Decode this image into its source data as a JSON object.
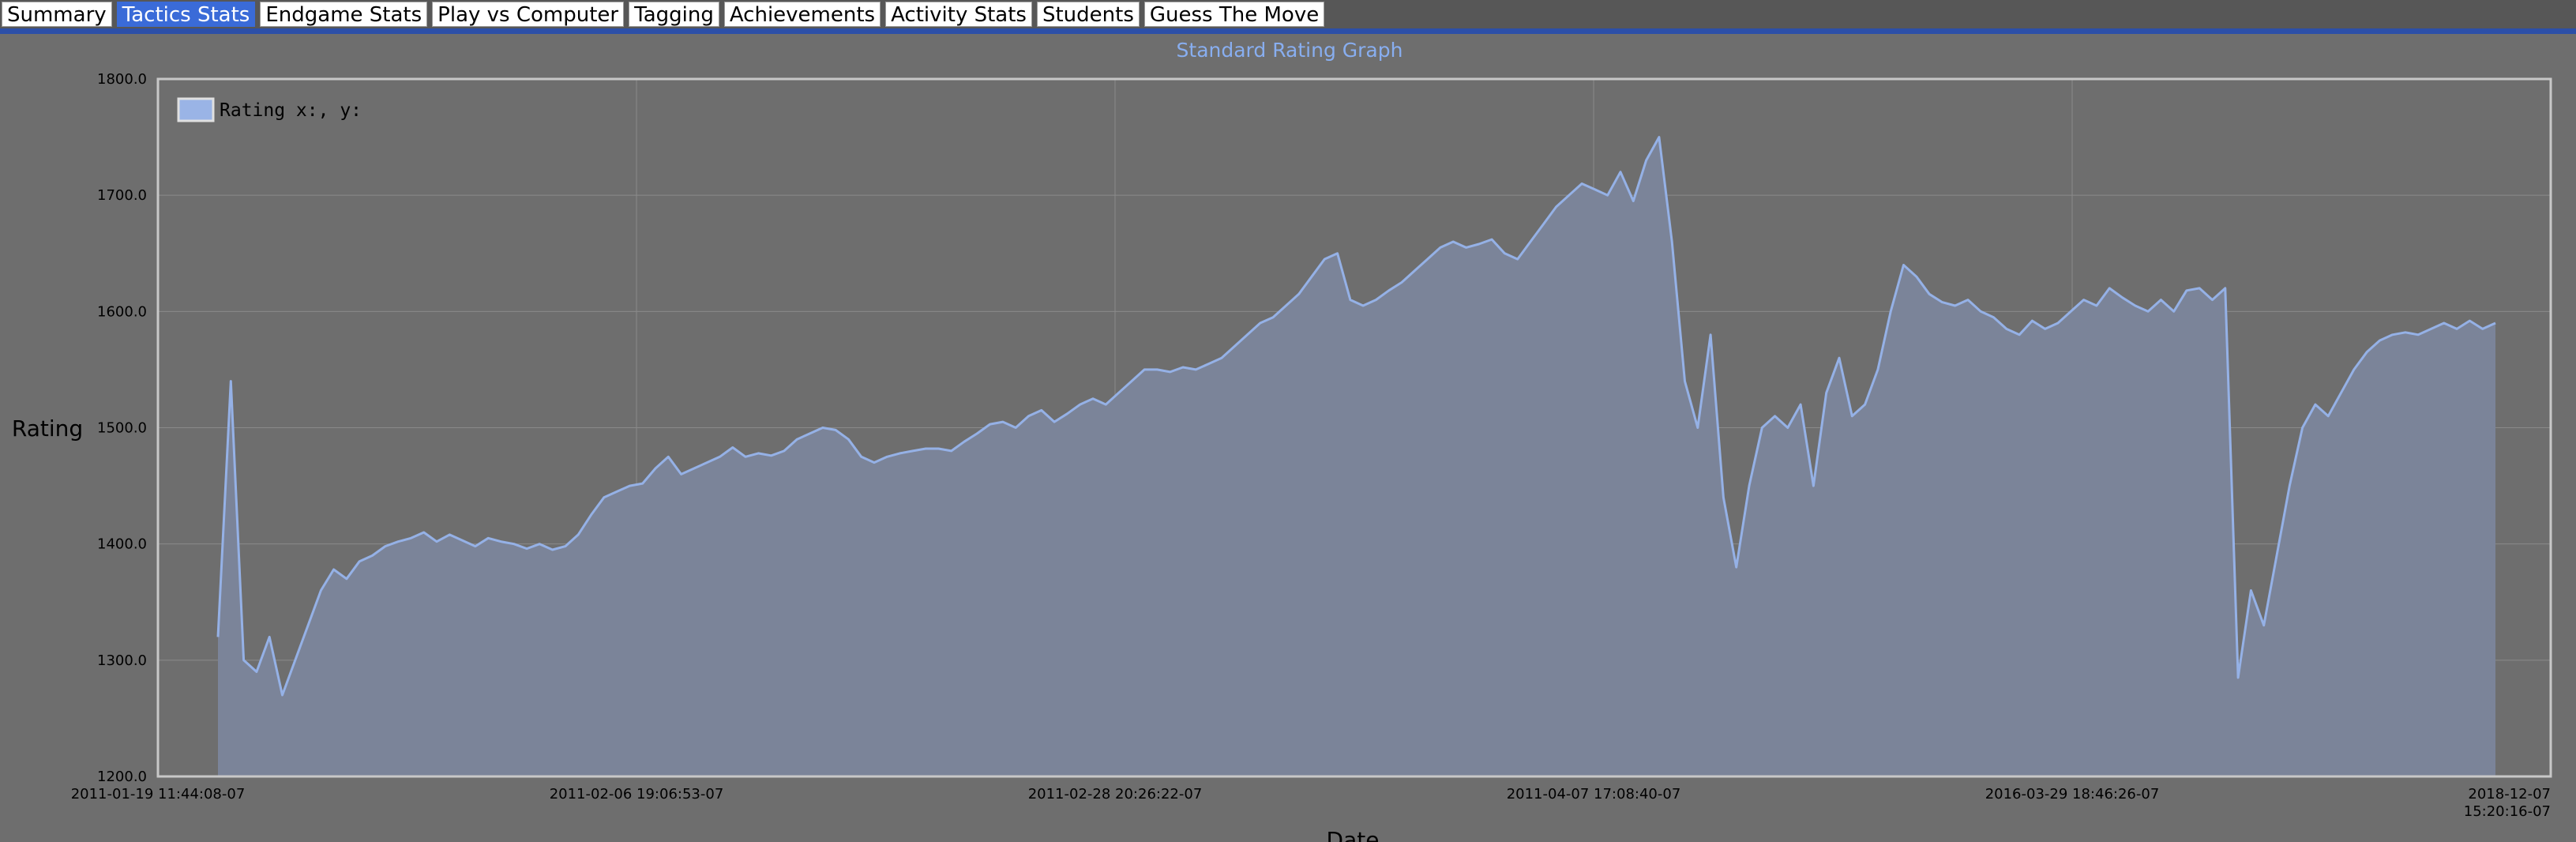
{
  "tabs": [
    {
      "label": "Summary",
      "active": false
    },
    {
      "label": "Tactics Stats",
      "active": true
    },
    {
      "label": "Endgame Stats",
      "active": false
    },
    {
      "label": "Play vs Computer",
      "active": false
    },
    {
      "label": "Tagging",
      "active": false
    },
    {
      "label": "Achievements",
      "active": false
    },
    {
      "label": "Activity Stats",
      "active": false
    },
    {
      "label": "Students",
      "active": false
    },
    {
      "label": "Guess The Move",
      "active": false
    }
  ],
  "colors": {
    "plot_background": "#6e6e6e",
    "area_fill": "#7b8499",
    "line": "#95b1e6",
    "title": "#88aef0",
    "grid": "#8a8a8a",
    "active_tab": "#3a6bd8",
    "rule": "#2c4fa8"
  },
  "chart_data": {
    "type": "area",
    "title": "Standard Rating Graph",
    "xlabel": "Date",
    "ylabel": "Rating",
    "ylim": [
      1200,
      1800
    ],
    "y_ticks": [
      "1200.0",
      "1300.0",
      "1400.0",
      "1500.0",
      "1600.0",
      "1700.0",
      "1800.0"
    ],
    "x_ticks": [
      "2011-01-19 11:44:08-07",
      "2011-02-06 19:06:53-07",
      "2011-02-28 20:26:22-07",
      "2011-04-07 17:08:40-07",
      "2016-03-29 18:46:26-07",
      "2018-12-07 15:20:16-07"
    ],
    "x_range": [
      "2011-01-19 11:44:08-07",
      "2018-12-07 15:20:16-07"
    ],
    "grid": true,
    "legend": {
      "position": "top-left",
      "entries": [
        "Rating x:, y:"
      ]
    },
    "series": [
      {
        "name": "Rating",
        "values": [
          1320,
          1540,
          1300,
          1290,
          1320,
          1270,
          1300,
          1330,
          1360,
          1378,
          1370,
          1385,
          1390,
          1398,
          1402,
          1405,
          1410,
          1402,
          1408,
          1403,
          1398,
          1405,
          1402,
          1400,
          1396,
          1400,
          1395,
          1398,
          1408,
          1425,
          1440,
          1445,
          1450,
          1452,
          1465,
          1475,
          1460,
          1465,
          1470,
          1475,
          1483,
          1475,
          1478,
          1476,
          1480,
          1490,
          1495,
          1500,
          1498,
          1490,
          1475,
          1470,
          1475,
          1478,
          1480,
          1482,
          1482,
          1480,
          1488,
          1495,
          1503,
          1505,
          1500,
          1510,
          1515,
          1505,
          1512,
          1520,
          1525,
          1520,
          1530,
          1540,
          1550,
          1550,
          1548,
          1552,
          1550,
          1555,
          1560,
          1570,
          1580,
          1590,
          1595,
          1605,
          1615,
          1630,
          1645,
          1650,
          1610,
          1605,
          1610,
          1618,
          1625,
          1635,
          1645,
          1655,
          1660,
          1655,
          1658,
          1662,
          1650,
          1645,
          1660,
          1675,
          1690,
          1700,
          1710,
          1705,
          1700,
          1720,
          1695,
          1730,
          1750,
          1660,
          1540,
          1500,
          1580,
          1440,
          1380,
          1450,
          1500,
          1510,
          1500,
          1520,
          1450,
          1530,
          1560,
          1510,
          1520,
          1550,
          1600,
          1640,
          1630,
          1615,
          1608,
          1605,
          1610,
          1600,
          1595,
          1585,
          1580,
          1592,
          1585,
          1590,
          1600,
          1610,
          1605,
          1620,
          1612,
          1605,
          1600,
          1610,
          1600,
          1618,
          1620,
          1610,
          1620,
          1285,
          1360,
          1330,
          1390,
          1450,
          1500,
          1520,
          1510,
          1530,
          1550,
          1565,
          1575,
          1580,
          1582,
          1580,
          1585,
          1590,
          1585,
          1592,
          1585,
          1590
        ]
      }
    ]
  }
}
